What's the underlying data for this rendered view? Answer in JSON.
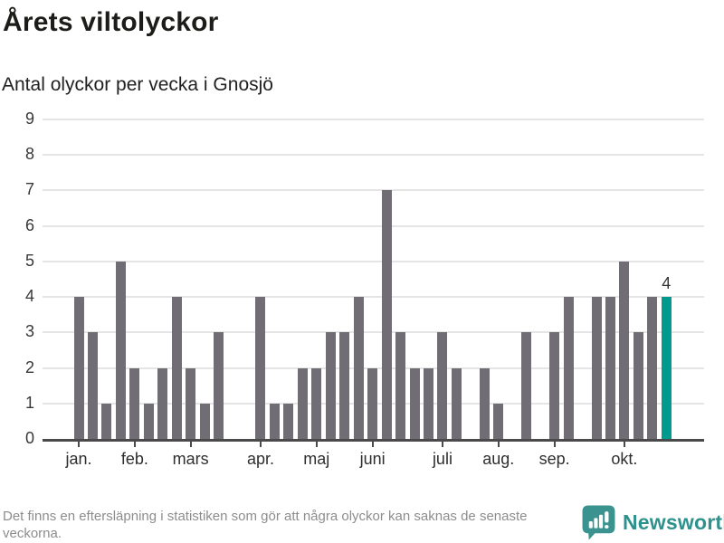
{
  "header": {
    "title": "Årets viltolyckor",
    "subtitle": "Antal olyckor per vecka i Gnosjö"
  },
  "chart_data": {
    "type": "bar",
    "title": "Årets viltolyckor",
    "subtitle": "Antal olyckor per vecka i Gnosjö",
    "x_unit": "vecka (week of year)",
    "values": [
      4,
      3,
      1,
      5,
      2,
      1,
      2,
      4,
      2,
      1,
      3,
      0,
      0,
      4,
      1,
      1,
      2,
      2,
      3,
      3,
      4,
      2,
      7,
      3,
      2,
      2,
      3,
      2,
      0,
      2,
      1,
      0,
      3,
      0,
      3,
      4,
      0,
      4,
      4,
      5,
      3,
      4,
      4
    ],
    "month_ticks": [
      {
        "label": "jan.",
        "week": 1
      },
      {
        "label": "feb.",
        "week": 5
      },
      {
        "label": "mars",
        "week": 9
      },
      {
        "label": "apr.",
        "week": 14
      },
      {
        "label": "maj",
        "week": 18
      },
      {
        "label": "juni",
        "week": 22
      },
      {
        "label": "juli",
        "week": 27
      },
      {
        "label": "aug.",
        "week": 31
      },
      {
        "label": "sep.",
        "week": 35
      },
      {
        "label": "okt.",
        "week": 40
      }
    ],
    "yticks": [
      0,
      1,
      2,
      3,
      4,
      5,
      6,
      7,
      8,
      9
    ],
    "ylim": [
      0,
      9
    ],
    "grid": true,
    "legend": "none",
    "bar_color": "#706d75",
    "highlight": {
      "index": 43,
      "value_label": "4",
      "color": "#009a8f"
    },
    "grid_color": "#e5e5e5",
    "axis_color": "#4a4a4a"
  },
  "footer": {
    "note": "Det finns en eftersläpning i statistiken som gör att några olyckor kan saknas de senaste veckorna.",
    "brand": "Newsworthy",
    "brand_color": "#2e918d"
  }
}
